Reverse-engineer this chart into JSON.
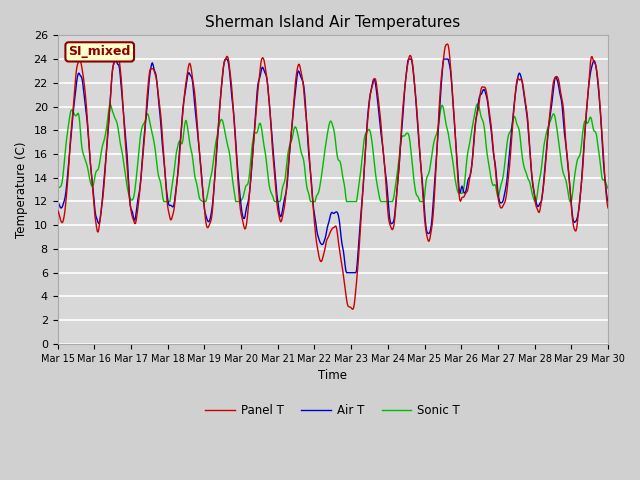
{
  "title": "Sherman Island Air Temperatures",
  "xlabel": "Time",
  "ylabel": "Temperature (C)",
  "ylim": [
    0,
    26
  ],
  "yticks": [
    0,
    2,
    4,
    6,
    8,
    10,
    12,
    14,
    16,
    18,
    20,
    22,
    24,
    26
  ],
  "annotation_text": "SI_mixed",
  "annotation_bg": "#ffffcc",
  "annotation_border": "#8b0000",
  "fig_bg": "#e8e8e8",
  "plot_bg": "#d8d8d8",
  "grid_color": "#ffffff",
  "line_colors": {
    "panel": "#cc0000",
    "air": "#0000cc",
    "sonic": "#00bb00"
  },
  "legend_labels": [
    "Panel T",
    "Air T",
    "Sonic T"
  ],
  "x_tick_labels": [
    "Mar 15",
    "Mar 16",
    "Mar 17",
    "Mar 18",
    "Mar 19",
    "Mar 20",
    "Mar 21",
    "Mar 22",
    "Mar 23",
    "Mar 24",
    "Mar 25",
    "Mar 26",
    "Mar 27",
    "Mar 28",
    "Mar 29",
    "Mar 30"
  ],
  "x_tick_positions": [
    0,
    24,
    48,
    72,
    96,
    120,
    144,
    168,
    192,
    216,
    240,
    264,
    288,
    312,
    336,
    360
  ],
  "num_points": 721
}
